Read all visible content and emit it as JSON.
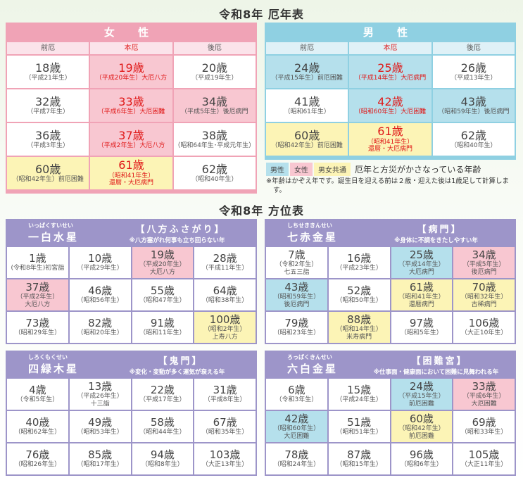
{
  "yakudoshi": {
    "title": "令和8年 厄年表",
    "female": {
      "header": "女 性",
      "columns": [
        "前厄",
        "本厄",
        "後厄"
      ],
      "cells": [
        {
          "age": "18歳",
          "lines": [
            "（平成21年生）"
          ],
          "bg": "w"
        },
        {
          "age": "19歳",
          "lines": [
            "（平成20年生）大厄八方"
          ],
          "bg": "p",
          "red": true
        },
        {
          "age": "20歳",
          "lines": [
            "（平成19年生）"
          ],
          "bg": "w"
        },
        {
          "age": "32歳",
          "lines": [
            "（平成7年生）"
          ],
          "bg": "w"
        },
        {
          "age": "33歳",
          "lines": [
            "（平成6年生）大厄困難"
          ],
          "bg": "p",
          "red": true
        },
        {
          "age": "34歳",
          "lines": [
            "（平成5年生）後厄病門"
          ],
          "bg": "p"
        },
        {
          "age": "36歳",
          "lines": [
            "（平成3年生）"
          ],
          "bg": "w"
        },
        {
          "age": "37歳",
          "lines": [
            "（平成2年生）大厄八方"
          ],
          "bg": "p",
          "red": true
        },
        {
          "age": "38歳",
          "lines": [
            "（昭和64年生･平成元年生）"
          ],
          "bg": "w"
        },
        {
          "age": "60歳",
          "lines": [
            "（昭和42年生）前厄困難"
          ],
          "bg": "y"
        },
        {
          "age": "61歳",
          "lines": [
            "（昭和41年生）",
            "還暦・大厄病門"
          ],
          "bg": "y",
          "red": true
        },
        {
          "age": "62歳",
          "lines": [
            "（昭和40年生）"
          ],
          "bg": "w"
        }
      ]
    },
    "male": {
      "header": "男 性",
      "columns": [
        "前厄",
        "本厄",
        "後厄"
      ],
      "cells": [
        {
          "age": "24歳",
          "lines": [
            "（平成15年生）前厄困難"
          ],
          "bg": "b"
        },
        {
          "age": "25歳",
          "lines": [
            "（平成14年生）大厄病門"
          ],
          "bg": "b",
          "red": true
        },
        {
          "age": "26歳",
          "lines": [
            "（平成13年生）"
          ],
          "bg": "w"
        },
        {
          "age": "41歳",
          "lines": [
            "（昭和61年生）"
          ],
          "bg": "w"
        },
        {
          "age": "42歳",
          "lines": [
            "（昭和60年生）大厄困難"
          ],
          "bg": "b",
          "red": true
        },
        {
          "age": "43歳",
          "lines": [
            "（昭和59年生）後厄病門"
          ],
          "bg": "b"
        },
        {
          "age": "60歳",
          "lines": [
            "（昭和42年生）前厄困難"
          ],
          "bg": "y"
        },
        {
          "age": "61歳",
          "lines": [
            "（昭和41年生）",
            "還暦・大厄病門"
          ],
          "bg": "y",
          "red": true
        },
        {
          "age": "62歳",
          "lines": [
            "（昭和40年生）"
          ],
          "bg": "w"
        }
      ]
    },
    "legend": {
      "male": "男性",
      "female": "女性",
      "common": "男女共通",
      "text": "厄年と方災がかさなっている年齢"
    },
    "note": "※年齢はかぞえ年です。誕生日を迎える前は２歳・迎えた後は1歳足して計算します。"
  },
  "colors": {
    "female": "#f0a3b6",
    "male": "#8fd0e2",
    "purple": "#9d95c9",
    "pink_cell": "#f8c7d1",
    "blue_cell": "#b5e0ec",
    "yellow_cell": "#fcf4b6",
    "red_text": "#e01818"
  },
  "houi": {
    "title": "令和8年 方位表",
    "tables": [
      {
        "reading": "いっぱくすいせい",
        "name": "一白水星",
        "label": "【八方ふさがり】",
        "note": "※八方塞がれ何事も立ち回らない年",
        "cells": [
          {
            "age": "1歳",
            "lines": [
              "(令和8年生)初宮詣"
            ],
            "bg": "w"
          },
          {
            "age": "10歳",
            "lines": [
              "（平成29年生）"
            ],
            "bg": "w"
          },
          {
            "age": "19歳",
            "lines": [
              "（平成20年生）",
              "大厄八方"
            ],
            "bg": "p"
          },
          {
            "age": "28歳",
            "lines": [
              "（平成11年生）"
            ],
            "bg": "w"
          },
          {
            "age": "37歳",
            "lines": [
              "（平成2年生）",
              "大厄八方"
            ],
            "bg": "p"
          },
          {
            "age": "46歳",
            "lines": [
              "（昭和56年生）"
            ],
            "bg": "w"
          },
          {
            "age": "55歳",
            "lines": [
              "（昭和47年生）"
            ],
            "bg": "w"
          },
          {
            "age": "64歳",
            "lines": [
              "（昭和38年生）"
            ],
            "bg": "w"
          },
          {
            "age": "73歳",
            "lines": [
              "（昭和29年生）"
            ],
            "bg": "w"
          },
          {
            "age": "82歳",
            "lines": [
              "（昭和20年生）"
            ],
            "bg": "w"
          },
          {
            "age": "91歳",
            "lines": [
              "（昭和11年生）"
            ],
            "bg": "w"
          },
          {
            "age": "100歳",
            "lines": [
              "（昭和2年生）",
              "上寿八方"
            ],
            "bg": "y"
          }
        ]
      },
      {
        "reading": "しちせききんせい",
        "name": "七赤金星",
        "label": "【病門】",
        "note": "※身体に不調をきたしやすい年",
        "cells": [
          {
            "age": "7歳",
            "lines": [
              "（令和2年生）",
              "七五三詣"
            ],
            "bg": "w"
          },
          {
            "age": "16歳",
            "lines": [
              "（平成23年生）"
            ],
            "bg": "w"
          },
          {
            "age": "25歳",
            "lines": [
              "（平成14年生）",
              "大厄病門"
            ],
            "bg": "b"
          },
          {
            "age": "34歳",
            "lines": [
              "（平成5年生）",
              "後厄病門"
            ],
            "bg": "p"
          },
          {
            "age": "43歳",
            "lines": [
              "（昭和59年生）",
              "後厄病門"
            ],
            "bg": "b"
          },
          {
            "age": "52歳",
            "lines": [
              "（昭和50年生）"
            ],
            "bg": "w"
          },
          {
            "age": "61歳",
            "lines": [
              "（昭和41年生）",
              "還暦病門"
            ],
            "bg": "y"
          },
          {
            "age": "70歳",
            "lines": [
              "（昭和32年生）",
              "古稀病門"
            ],
            "bg": "y"
          },
          {
            "age": "79歳",
            "lines": [
              "（昭和23年生）"
            ],
            "bg": "w"
          },
          {
            "age": "88歳",
            "lines": [
              "（昭和14年生）",
              "米寿病門"
            ],
            "bg": "y"
          },
          {
            "age": "97歳",
            "lines": [
              "（昭和5年生）"
            ],
            "bg": "w"
          },
          {
            "age": "106歳",
            "lines": [
              "（大正10年生）"
            ],
            "bg": "w"
          }
        ]
      },
      {
        "reading": "しろくもくせい",
        "name": "四緑木星",
        "label": "【鬼門】",
        "note": "※変化・変動が多く運気が衰える年",
        "cells": [
          {
            "age": "4歳",
            "lines": [
              "（令和5年生）"
            ],
            "bg": "w"
          },
          {
            "age": "13歳",
            "lines": [
              "（平成26年生）",
              "十三詣"
            ],
            "bg": "w"
          },
          {
            "age": "22歳",
            "lines": [
              "（平成17年生）"
            ],
            "bg": "w"
          },
          {
            "age": "31歳",
            "lines": [
              "（平成8年生）"
            ],
            "bg": "w"
          },
          {
            "age": "40歳",
            "lines": [
              "（昭和62年生）"
            ],
            "bg": "w"
          },
          {
            "age": "49歳",
            "lines": [
              "（昭和53年生）"
            ],
            "bg": "w"
          },
          {
            "age": "58歳",
            "lines": [
              "（昭和44年生）"
            ],
            "bg": "w"
          },
          {
            "age": "67歳",
            "lines": [
              "（昭和35年生）"
            ],
            "bg": "w"
          },
          {
            "age": "76歳",
            "lines": [
              "（昭和26年生）"
            ],
            "bg": "w"
          },
          {
            "age": "85歳",
            "lines": [
              "（昭和17年生）"
            ],
            "bg": "w"
          },
          {
            "age": "94歳",
            "lines": [
              "（昭和8年生）"
            ],
            "bg": "w"
          },
          {
            "age": "103歳",
            "lines": [
              "（大正13年生）"
            ],
            "bg": "w"
          }
        ]
      },
      {
        "reading": "ろっぱくきんせい",
        "name": "六白金星",
        "label": "【困難宮】",
        "note": "※仕事面・健康面において困難に見舞われる年",
        "cells": [
          {
            "age": "6歳",
            "lines": [
              "（令和3年生）"
            ],
            "bg": "w"
          },
          {
            "age": "15歳",
            "lines": [
              "（平成24年生）"
            ],
            "bg": "w"
          },
          {
            "age": "24歳",
            "lines": [
              "（平成15年生）",
              "前厄困難"
            ],
            "bg": "b"
          },
          {
            "age": "33歳",
            "lines": [
              "（平成6年生）",
              "大厄困難"
            ],
            "bg": "p"
          },
          {
            "age": "42歳",
            "lines": [
              "（昭和60年生）",
              "大厄困難"
            ],
            "bg": "b"
          },
          {
            "age": "51歳",
            "lines": [
              "（昭和51年生）"
            ],
            "bg": "w"
          },
          {
            "age": "60歳",
            "lines": [
              "（昭和42年生）",
              "前厄困難"
            ],
            "bg": "y"
          },
          {
            "age": "69歳",
            "lines": [
              "（昭和33年生）"
            ],
            "bg": "w"
          },
          {
            "age": "78歳",
            "lines": [
              "（昭和24年生）"
            ],
            "bg": "w"
          },
          {
            "age": "87歳",
            "lines": [
              "（昭和15年生）"
            ],
            "bg": "w"
          },
          {
            "age": "96歳",
            "lines": [
              "（昭和6年生）"
            ],
            "bg": "w"
          },
          {
            "age": "105歳",
            "lines": [
              "（大正11年生）"
            ],
            "bg": "w"
          }
        ]
      }
    ]
  }
}
